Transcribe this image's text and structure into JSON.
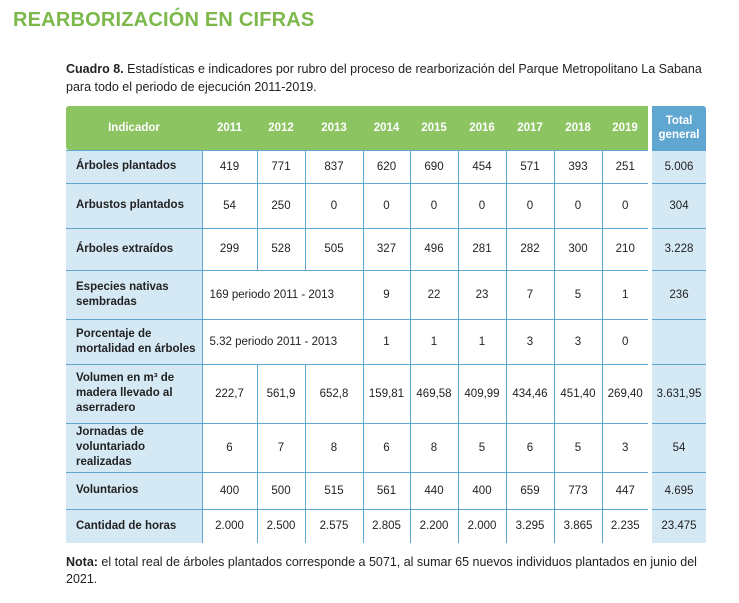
{
  "title": "REARBORIZACIÓN EN CIFRAS",
  "caption": {
    "label": "Cuadro 8.",
    "text": " Estadísticas e indicadores por rubro del proceso de rearborización del Parque Metropolitano La Sabana para todo el periodo de ejecución 2011-2019."
  },
  "table": {
    "headers": [
      "Indicador",
      "2011",
      "2012",
      "2013",
      "2014",
      "2015",
      "2016",
      "2017",
      "2018",
      "2019",
      "Total general"
    ],
    "rows": [
      {
        "label": "Árboles plantados",
        "values": [
          "419",
          "771",
          "837",
          "620",
          "690",
          "454",
          "571",
          "393",
          "251"
        ],
        "total": "5.006"
      },
      {
        "label": "Arbustos plantados",
        "values": [
          "54",
          "250",
          "0",
          "0",
          "0",
          "0",
          "0",
          "0",
          "0"
        ],
        "total": "304"
      },
      {
        "label": "Árboles extraídos",
        "values": [
          "299",
          "528",
          "505",
          "327",
          "496",
          "281",
          "282",
          "300",
          "210"
        ],
        "total": "3.228"
      },
      {
        "label": "Especies nativas sembradas",
        "merged": "169 periodo 2011 - 2013",
        "values": [
          "9",
          "22",
          "23",
          "7",
          "5",
          "1"
        ],
        "total": "236"
      },
      {
        "label": "Porcentaje de mortalidad en árboles",
        "merged": "5.32 periodo 2011 - 2013",
        "values": [
          "1",
          "1",
          "1",
          "3",
          "3",
          "0"
        ],
        "total": ""
      },
      {
        "label": "Volumen en m³ de madera llevado al aserradero",
        "values": [
          "222,7",
          "561,9",
          "652,8",
          "159,81",
          "469,58",
          "409,99",
          "434,46",
          "451,40",
          "269,40"
        ],
        "total": "3.631,95"
      },
      {
        "label": "Jornadas de voluntariado realizadas",
        "values": [
          "6",
          "7",
          "8",
          "6",
          "8",
          "5",
          "6",
          "5",
          "3"
        ],
        "total": "54"
      },
      {
        "label": "Voluntarios",
        "values": [
          "400",
          "500",
          "515",
          "561",
          "440",
          "400",
          "659",
          "773",
          "447"
        ],
        "total": "4.695"
      },
      {
        "label": "Cantidad de horas",
        "values": [
          "2.000",
          "2.500",
          "2.575",
          "2.805",
          "2.200",
          "2.000",
          "3.295",
          "3.865",
          "2.235"
        ],
        "total": "23.475"
      }
    ]
  },
  "note": {
    "label": "Nota:",
    "text": " el total real de árboles plantados corresponde a 5071, al sumar 65 nuevos individuos plantados en junio del 2021."
  }
}
